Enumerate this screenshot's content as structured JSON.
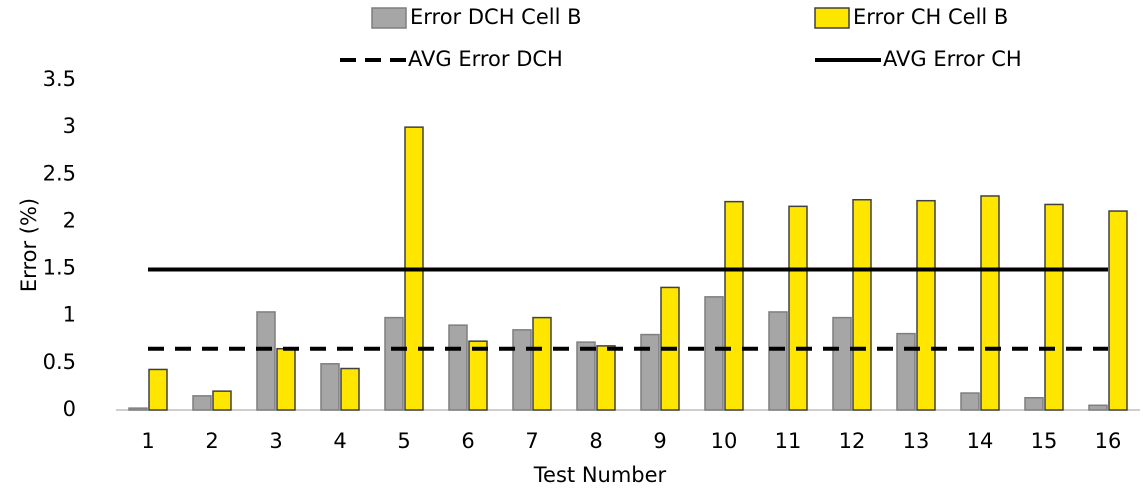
{
  "chart_data": {
    "type": "bar",
    "xlabel": "Test Number",
    "ylabel": "Error (%)",
    "categories": [
      "1",
      "2",
      "3",
      "4",
      "5",
      "6",
      "7",
      "8",
      "9",
      "10",
      "11",
      "12",
      "13",
      "14",
      "15",
      "16"
    ],
    "series": [
      {
        "name": "Error DCH Cell B",
        "type": "bar",
        "color": "#a6a6a6",
        "stroke": "#7f7f7f",
        "values": [
          0.02,
          0.15,
          1.04,
          0.49,
          0.98,
          0.9,
          0.85,
          0.72,
          0.8,
          1.2,
          1.04,
          0.98,
          0.81,
          0.18,
          0.13,
          0.05
        ]
      },
      {
        "name": "Error CH Cell B",
        "type": "bar",
        "color": "#ffe600",
        "stroke": "#404040",
        "values": [
          0.43,
          0.2,
          0.65,
          0.44,
          3.0,
          0.73,
          0.98,
          0.68,
          1.3,
          2.21,
          2.16,
          2.23,
          2.22,
          2.27,
          2.18,
          2.11
        ]
      },
      {
        "name": "AVG Error DCH",
        "type": "line",
        "color": "#000000",
        "dash": "dashed",
        "values": [
          0.65,
          0.65,
          0.65,
          0.65,
          0.65,
          0.65,
          0.65,
          0.65,
          0.65,
          0.65,
          0.65,
          0.65,
          0.65,
          0.65,
          0.65,
          0.65
        ]
      },
      {
        "name": "AVG Error CH",
        "type": "line",
        "color": "#000000",
        "dash": "solid",
        "values": [
          1.49,
          1.49,
          1.49,
          1.49,
          1.49,
          1.49,
          1.49,
          1.49,
          1.49,
          1.49,
          1.49,
          1.49,
          1.49,
          1.49,
          1.49,
          1.49
        ]
      }
    ],
    "ylim": [
      0,
      3.5
    ],
    "yticks": [
      0,
      0.5,
      1,
      1.5,
      2,
      2.5,
      3,
      3.5
    ],
    "grid": false,
    "legend": "top"
  }
}
